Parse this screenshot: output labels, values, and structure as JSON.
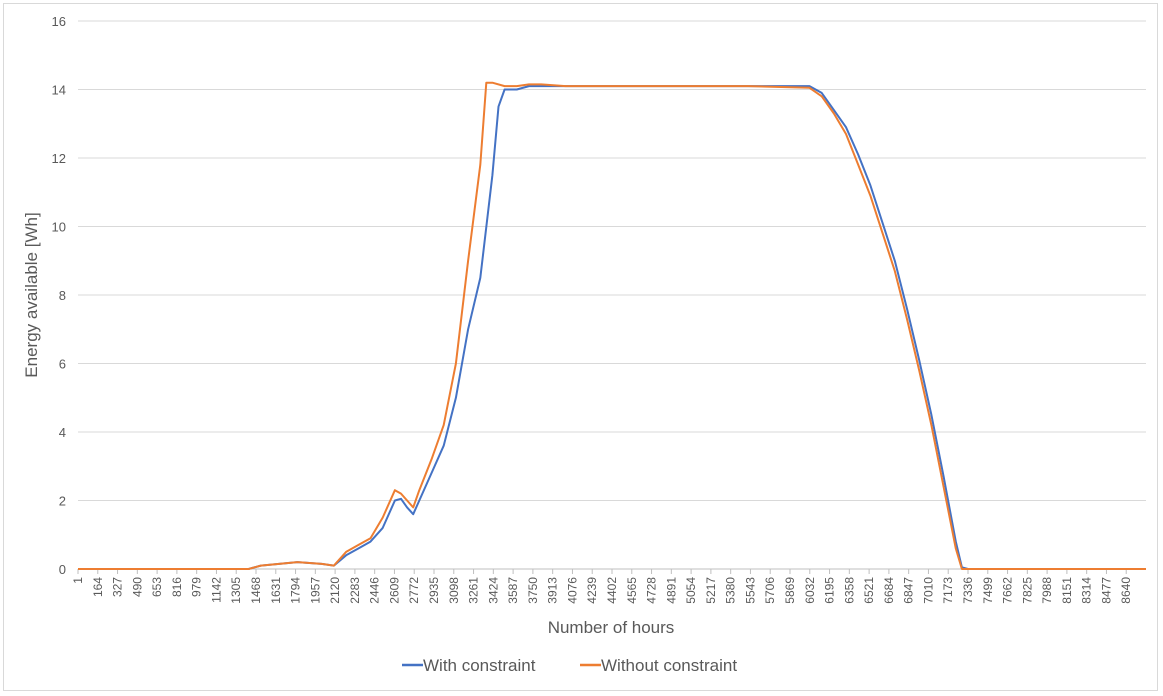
{
  "chart_data": {
    "type": "line",
    "xlabel": "Number of hours",
    "ylabel": "Energy available [Wh]",
    "xlim": [
      1,
      8760
    ],
    "ylim": [
      0,
      16
    ],
    "y_ticks": [
      0,
      2,
      4,
      6,
      8,
      10,
      12,
      14,
      16
    ],
    "x_tick_labels": [
      "1",
      "164",
      "327",
      "490",
      "653",
      "816",
      "979",
      "1142",
      "1305",
      "1468",
      "1631",
      "1794",
      "1957",
      "2120",
      "2283",
      "2446",
      "2609",
      "2772",
      "2935",
      "3098",
      "3261",
      "3424",
      "3587",
      "3750",
      "3913",
      "4076",
      "4239",
      "4402",
      "4565",
      "4728",
      "4891",
      "5054",
      "5217",
      "5380",
      "5543",
      "5706",
      "5869",
      "6032",
      "6195",
      "6358",
      "6521",
      "6684",
      "6847",
      "7010",
      "7173",
      "7336",
      "7499",
      "7662",
      "7825",
      "7988",
      "8151",
      "8314",
      "8477",
      "8640"
    ],
    "grid": "horizontal",
    "legend_position": "bottom",
    "series": [
      {
        "name": "With constraint",
        "color": "#4472c4",
        "x": [
          1,
          1400,
          1500,
          1800,
          2000,
          2100,
          2200,
          2300,
          2400,
          2500,
          2600,
          2650,
          2700,
          2750,
          2800,
          2900,
          3000,
          3100,
          3200,
          3300,
          3400,
          3450,
          3500,
          3600,
          3700,
          3800,
          4000,
          4500,
          5000,
          5500,
          6000,
          6100,
          6200,
          6300,
          6400,
          6500,
          6600,
          6700,
          6800,
          6900,
          7000,
          7100,
          7200,
          7250,
          7300,
          8760
        ],
        "y": [
          0,
          0,
          0.1,
          0.2,
          0.15,
          0.1,
          0.4,
          0.6,
          0.8,
          1.2,
          2.0,
          2.05,
          1.8,
          1.6,
          2.0,
          2.8,
          3.6,
          5.0,
          7.0,
          8.5,
          11.5,
          13.5,
          14.0,
          14.0,
          14.1,
          14.1,
          14.1,
          14.1,
          14.1,
          14.1,
          14.1,
          13.9,
          13.4,
          12.9,
          12.1,
          11.2,
          10.1,
          9.0,
          7.6,
          6.1,
          4.5,
          2.7,
          0.8,
          0.05,
          0,
          0
        ]
      },
      {
        "name": "Without constraint",
        "color": "#ed7d31",
        "x": [
          1,
          1400,
          1500,
          1800,
          2000,
          2100,
          2200,
          2300,
          2400,
          2500,
          2600,
          2650,
          2700,
          2750,
          2800,
          2900,
          3000,
          3100,
          3200,
          3300,
          3350,
          3400,
          3500,
          3600,
          3700,
          3800,
          4000,
          4500,
          5000,
          5500,
          6000,
          6100,
          6200,
          6300,
          6400,
          6500,
          6600,
          6700,
          6800,
          6900,
          7000,
          7100,
          7200,
          7250,
          7300,
          8760
        ],
        "y": [
          0,
          0,
          0.1,
          0.2,
          0.15,
          0.1,
          0.5,
          0.7,
          0.9,
          1.5,
          2.3,
          2.2,
          2.0,
          1.8,
          2.3,
          3.2,
          4.2,
          6.0,
          9.0,
          11.8,
          14.2,
          14.2,
          14.1,
          14.1,
          14.15,
          14.15,
          14.1,
          14.1,
          14.1,
          14.1,
          14.05,
          13.8,
          13.3,
          12.7,
          11.8,
          10.9,
          9.8,
          8.7,
          7.3,
          5.8,
          4.2,
          2.4,
          0.6,
          0,
          0,
          0
        ]
      }
    ]
  }
}
